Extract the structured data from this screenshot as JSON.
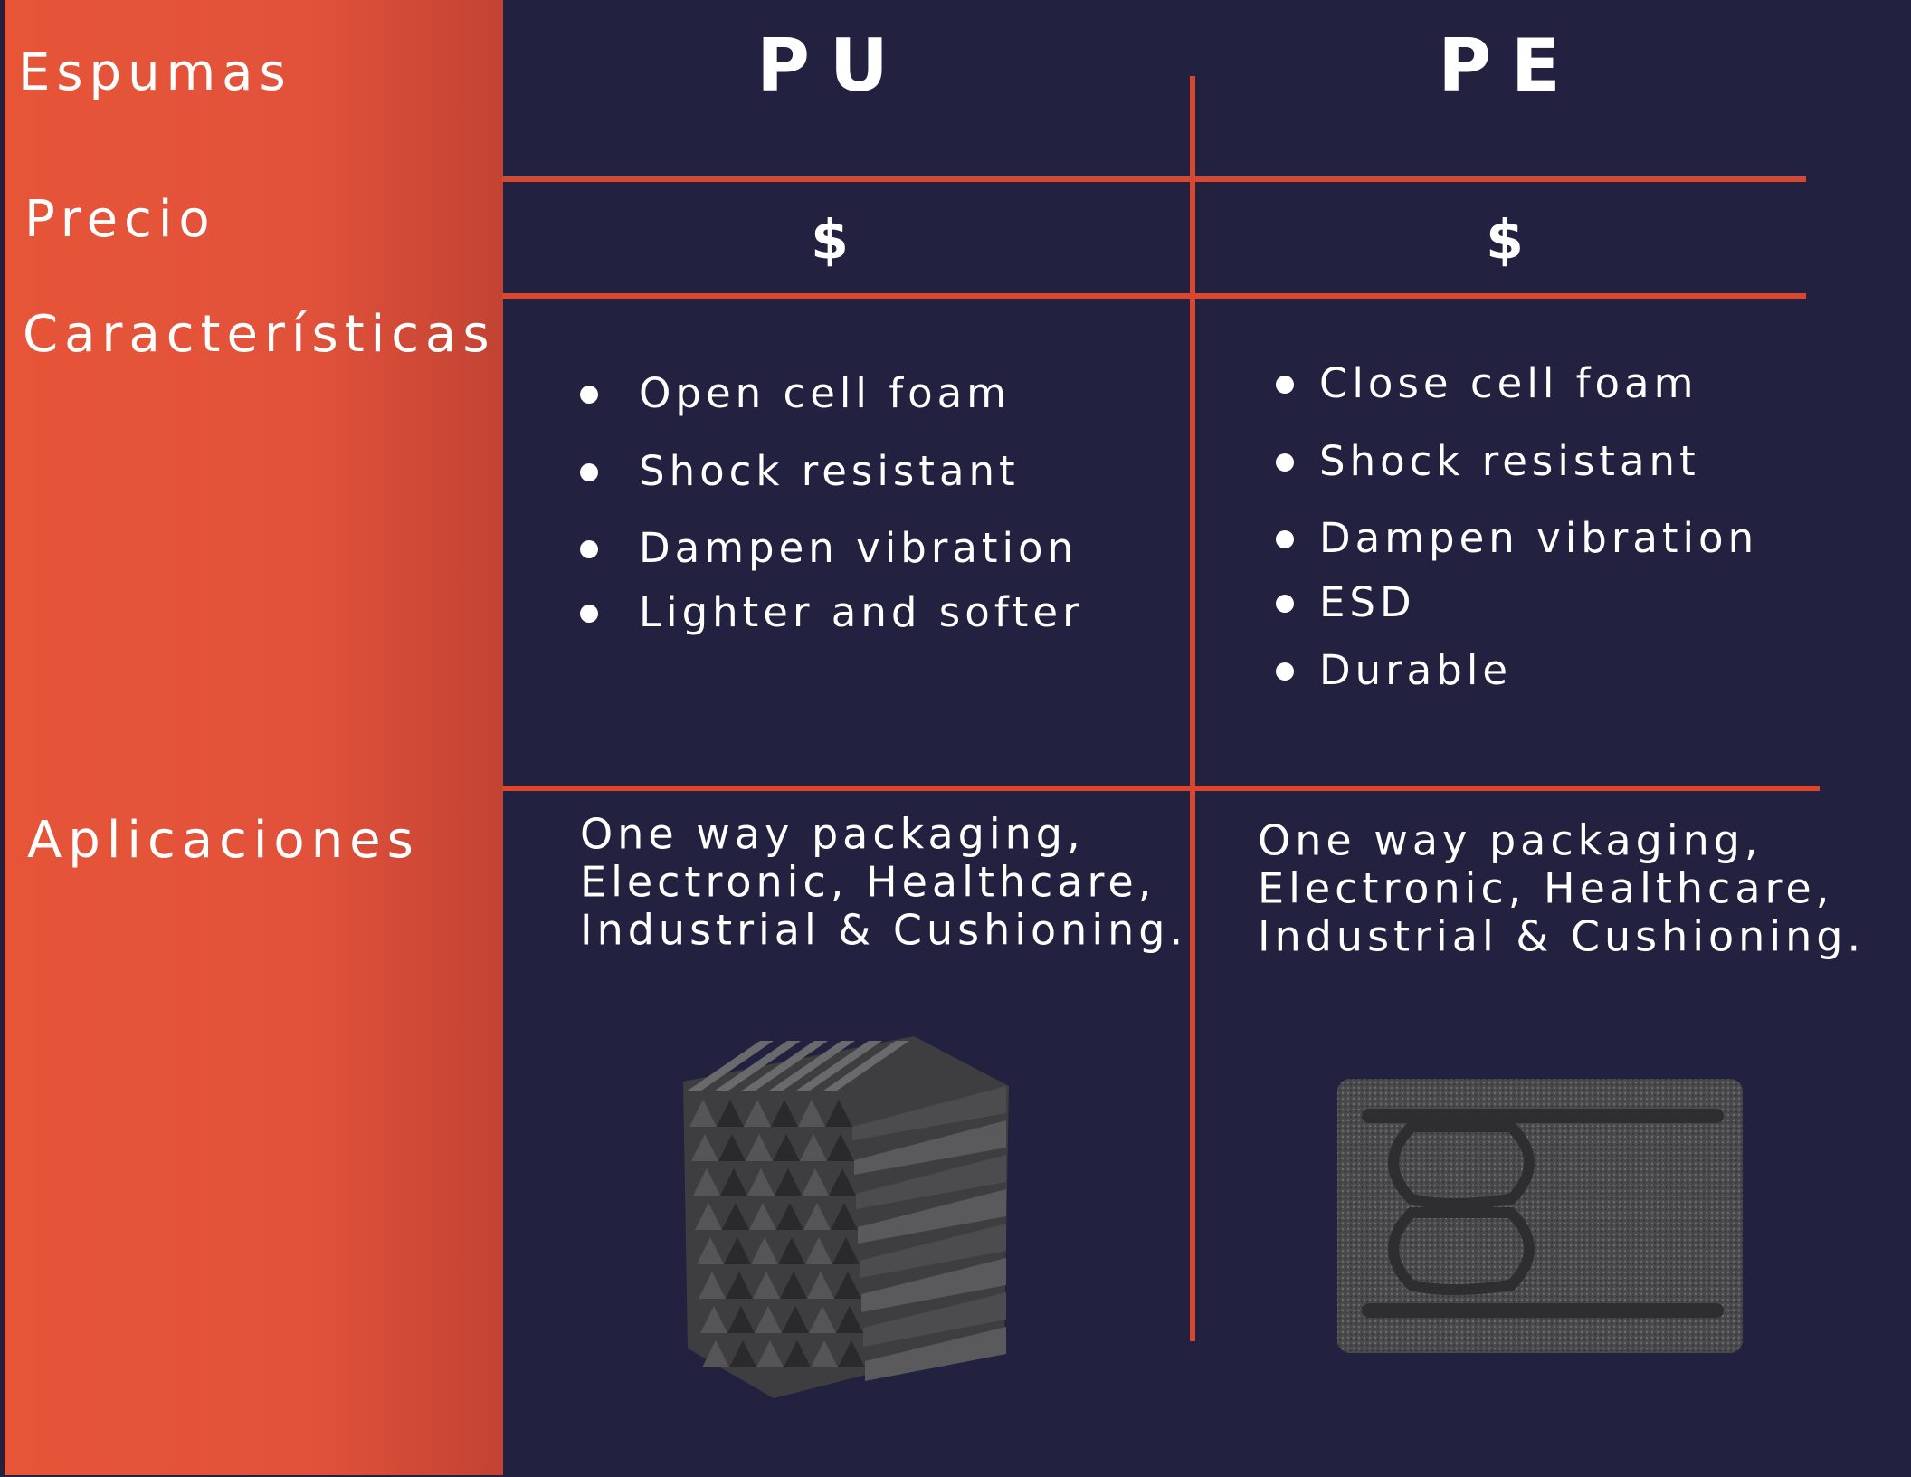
{
  "header": {
    "row_label": "Espumas",
    "columns": [
      "PU",
      "PE"
    ]
  },
  "rows": [
    {
      "label": "Precio",
      "cells": [
        "$",
        "$"
      ]
    },
    {
      "label": "Características",
      "cells": [
        [
          "Open cell foam",
          "Shock resistant",
          "Dampen vibration",
          "Lighter and softer"
        ],
        [
          "Close cell foam",
          "Shock resistant",
          "Dampen vibration",
          "ESD",
          "Durable"
        ]
      ]
    },
    {
      "label": "Aplicaciones",
      "cells": [
        [
          "One way packaging,",
          "Electronic, Healthcare,",
          "Industrial & Cushioning."
        ],
        [
          "One way packaging,",
          "Electronic, Healthcare,",
          "Industrial & Cushioning."
        ]
      ]
    }
  ]
}
